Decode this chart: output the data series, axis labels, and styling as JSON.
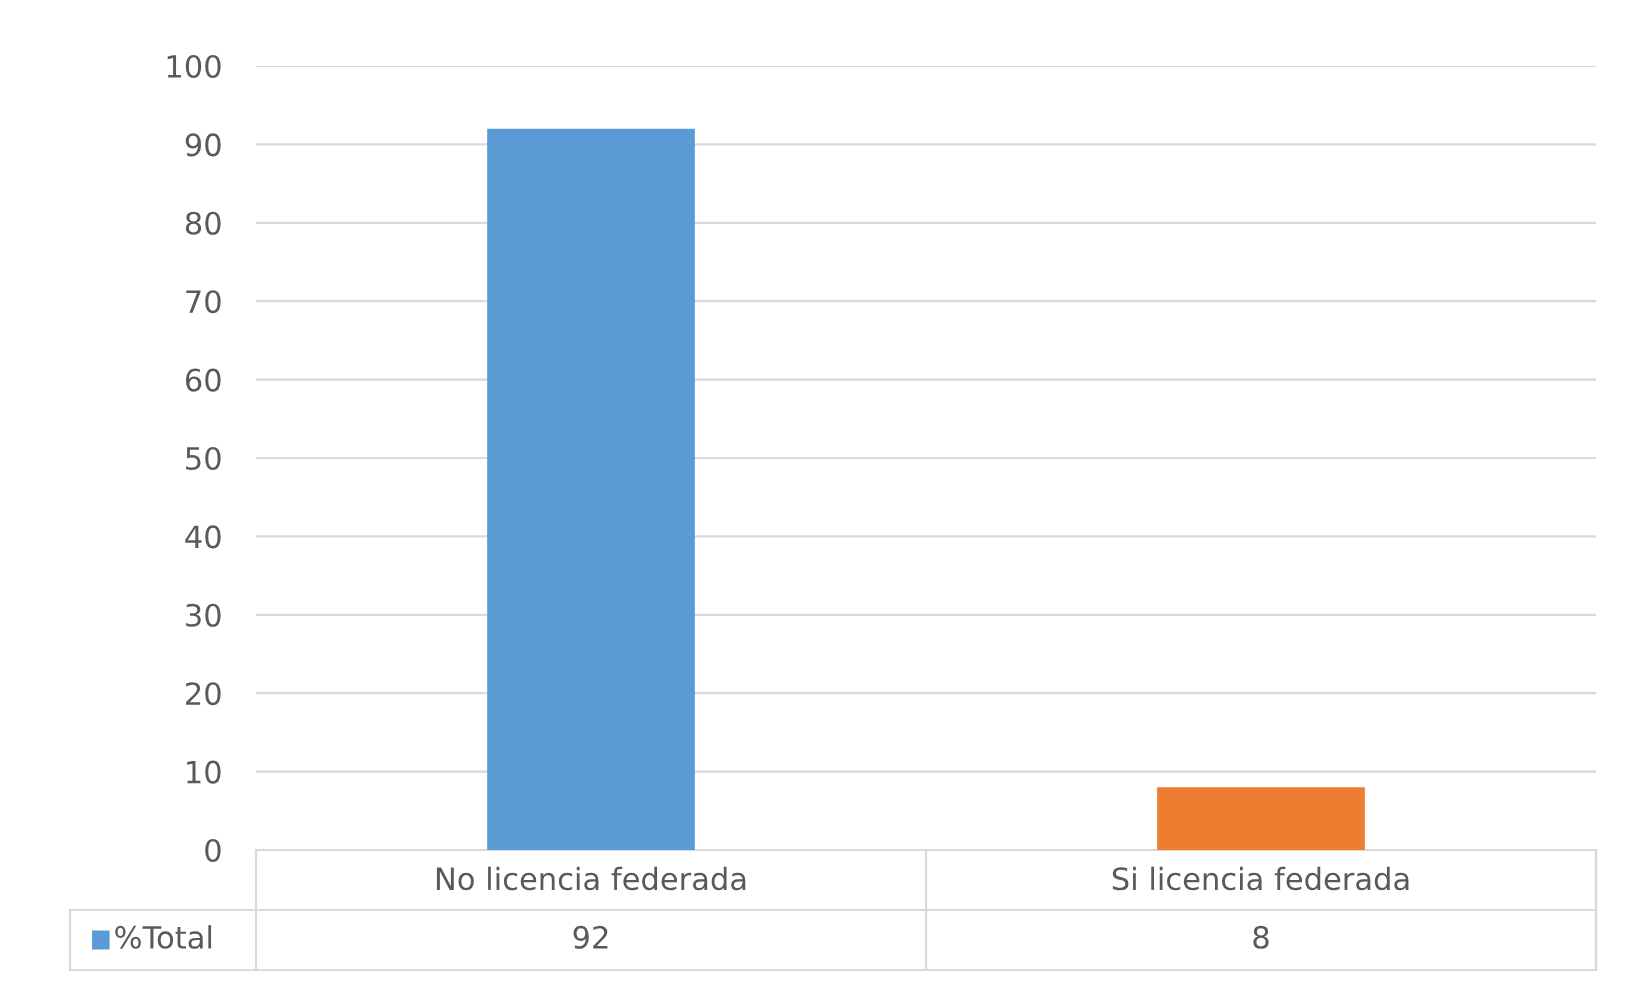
{
  "chart_data": {
    "type": "bar",
    "categories": [
      "No licencia federada",
      "Si licencia federada"
    ],
    "series": [
      {
        "name": "%Total",
        "color": "#5b9bd5",
        "colors": [
          "#5b9bd5",
          "#ed7d31"
        ],
        "values": [
          92,
          8
        ]
      }
    ],
    "ylim": [
      0,
      100
    ],
    "yticks": [
      0,
      10,
      20,
      30,
      40,
      50,
      60,
      70,
      80,
      90,
      100
    ],
    "grid": "y",
    "data_labels": true,
    "legend": "bottom left"
  }
}
